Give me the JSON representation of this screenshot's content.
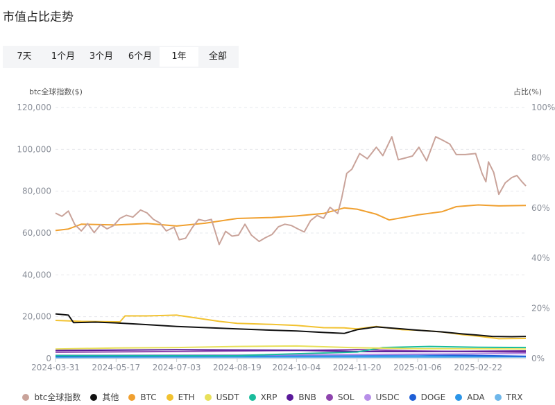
{
  "page": {
    "title": "市值占比走势"
  },
  "tabs": [
    {
      "label": "7天",
      "active": false
    },
    {
      "label": "1个月",
      "active": false
    },
    {
      "label": "3个月",
      "active": false
    },
    {
      "label": "6个月",
      "active": false
    },
    {
      "label": "1年",
      "active": true
    },
    {
      "label": "全部",
      "active": false
    }
  ],
  "chart_data": {
    "type": "line",
    "left_axis_title": "btc全球指数($)",
    "right_axis_title": "占比(%)",
    "y_left": {
      "min": 0,
      "max": 120000,
      "ticks": [
        "0",
        "20,000",
        "40,000",
        "60,000",
        "80,000",
        "100,000",
        "120,000"
      ]
    },
    "y_right": {
      "min": 0,
      "max": 100,
      "ticks": [
        "0%",
        "20%",
        "40%",
        "60%",
        "80%",
        "100%"
      ]
    },
    "x_range": [
      "2024-03-31",
      "2025-03-31"
    ],
    "x_ticks": [
      "2024-03-31",
      "2024-05-17",
      "2024-07-03",
      "2024-08-19",
      "2024-10-04",
      "2024-11-20",
      "2025-01-06",
      "2025-02-22"
    ],
    "grid": "horizontal-dashed",
    "legend_position": "bottom",
    "series": [
      {
        "name": "btc全球指数($)",
        "axis": "left",
        "color": "#c9a39a",
        "points": [
          [
            "2024-03-31",
            69500
          ],
          [
            "2024-04-05",
            68000
          ],
          [
            "2024-04-10",
            70500
          ],
          [
            "2024-04-15",
            64000
          ],
          [
            "2024-04-20",
            61000
          ],
          [
            "2024-04-25",
            64500
          ],
          [
            "2024-04-30",
            60200
          ],
          [
            "2024-05-05",
            64000
          ],
          [
            "2024-05-10",
            62000
          ],
          [
            "2024-05-15",
            63500
          ],
          [
            "2024-05-20",
            67000
          ],
          [
            "2024-05-25",
            68500
          ],
          [
            "2024-05-30",
            67600
          ],
          [
            "2024-06-05",
            71000
          ],
          [
            "2024-06-10",
            69600
          ],
          [
            "2024-06-15",
            66500
          ],
          [
            "2024-06-20",
            64800
          ],
          [
            "2024-06-25",
            61000
          ],
          [
            "2024-07-01",
            62800
          ],
          [
            "2024-07-05",
            56800
          ],
          [
            "2024-07-10",
            57500
          ],
          [
            "2024-07-15",
            62500
          ],
          [
            "2024-07-20",
            66500
          ],
          [
            "2024-07-25",
            65800
          ],
          [
            "2024-07-30",
            66500
          ],
          [
            "2024-08-05",
            54500
          ],
          [
            "2024-08-10",
            60800
          ],
          [
            "2024-08-15",
            58500
          ],
          [
            "2024-08-20",
            59000
          ],
          [
            "2024-08-25",
            64200
          ],
          [
            "2024-08-30",
            59000
          ],
          [
            "2024-09-05",
            56000
          ],
          [
            "2024-09-10",
            57800
          ],
          [
            "2024-09-15",
            59300
          ],
          [
            "2024-09-20",
            63000
          ],
          [
            "2024-09-25",
            64200
          ],
          [
            "2024-09-30",
            63600
          ],
          [
            "2024-10-05",
            62000
          ],
          [
            "2024-10-10",
            60500
          ],
          [
            "2024-10-15",
            66000
          ],
          [
            "2024-10-20",
            68400
          ],
          [
            "2024-10-25",
            67000
          ],
          [
            "2024-10-30",
            72300
          ],
          [
            "2024-11-05",
            69300
          ],
          [
            "2024-11-08",
            76500
          ],
          [
            "2024-11-12",
            88500
          ],
          [
            "2024-11-16",
            90500
          ],
          [
            "2024-11-22",
            98000
          ],
          [
            "2024-11-28",
            95500
          ],
          [
            "2024-12-05",
            101000
          ],
          [
            "2024-12-10",
            97000
          ],
          [
            "2024-12-17",
            106000
          ],
          [
            "2024-12-22",
            95000
          ],
          [
            "2024-12-27",
            95800
          ],
          [
            "2025-01-02",
            96800
          ],
          [
            "2025-01-07",
            101000
          ],
          [
            "2025-01-13",
            94500
          ],
          [
            "2025-01-20",
            106000
          ],
          [
            "2025-01-25",
            104500
          ],
          [
            "2025-01-31",
            102500
          ],
          [
            "2025-02-05",
            97500
          ],
          [
            "2025-02-12",
            97500
          ],
          [
            "2025-02-20",
            98000
          ],
          [
            "2025-02-25",
            88500
          ],
          [
            "2025-02-28",
            84500
          ],
          [
            "2025-03-02",
            94000
          ],
          [
            "2025-03-06",
            89000
          ],
          [
            "2025-03-10",
            78500
          ],
          [
            "2025-03-15",
            84000
          ],
          [
            "2025-03-20",
            86500
          ],
          [
            "2025-03-24",
            87500
          ],
          [
            "2025-03-28",
            84500
          ],
          [
            "2025-03-31",
            82500
          ]
        ]
      },
      {
        "name": "其他",
        "axis": "right",
        "color": "#111111",
        "points": [
          [
            "2024-03-31",
            17.8
          ],
          [
            "2024-04-10",
            17.3
          ],
          [
            "2024-04-14",
            14.3
          ],
          [
            "2024-05-01",
            14.5
          ],
          [
            "2024-05-17",
            14.2
          ],
          [
            "2024-06-10",
            13.5
          ],
          [
            "2024-07-03",
            12.8
          ],
          [
            "2024-07-30",
            12.2
          ],
          [
            "2024-08-19",
            11.8
          ],
          [
            "2024-09-15",
            11.3
          ],
          [
            "2024-10-04",
            11.0
          ],
          [
            "2024-10-25",
            10.4
          ],
          [
            "2024-11-10",
            10.0
          ],
          [
            "2024-11-20",
            11.5
          ],
          [
            "2024-12-05",
            12.6
          ],
          [
            "2024-12-25",
            11.8
          ],
          [
            "2025-01-06",
            11.3
          ],
          [
            "2025-01-25",
            10.6
          ],
          [
            "2025-02-10",
            9.8
          ],
          [
            "2025-02-22",
            9.3
          ],
          [
            "2025-03-05",
            8.8
          ],
          [
            "2025-03-20",
            8.7
          ],
          [
            "2025-03-31",
            8.8
          ]
        ]
      },
      {
        "name": "BTC",
        "axis": "right",
        "color": "#f0a030",
        "points": [
          [
            "2024-03-31",
            51.0
          ],
          [
            "2024-04-10",
            51.6
          ],
          [
            "2024-04-20",
            53.5
          ],
          [
            "2024-05-17",
            53.2
          ],
          [
            "2024-06-10",
            53.8
          ],
          [
            "2024-07-03",
            52.8
          ],
          [
            "2024-07-25",
            53.9
          ],
          [
            "2024-08-19",
            55.8
          ],
          [
            "2024-09-15",
            56.2
          ],
          [
            "2024-10-04",
            56.8
          ],
          [
            "2024-10-25",
            57.8
          ],
          [
            "2024-11-10",
            60.0
          ],
          [
            "2024-11-20",
            59.5
          ],
          [
            "2024-12-05",
            57.5
          ],
          [
            "2024-12-15",
            55.2
          ],
          [
            "2025-01-06",
            57.2
          ],
          [
            "2025-01-25",
            58.5
          ],
          [
            "2025-02-05",
            60.5
          ],
          [
            "2025-02-22",
            61.2
          ],
          [
            "2025-03-10",
            60.8
          ],
          [
            "2025-03-31",
            61.0
          ]
        ]
      },
      {
        "name": "ETH",
        "axis": "right",
        "color": "#f2c230",
        "points": [
          [
            "2024-03-31",
            15.2
          ],
          [
            "2024-04-20",
            14.8
          ],
          [
            "2024-05-20",
            14.6
          ],
          [
            "2024-05-24",
            17.0
          ],
          [
            "2024-06-10",
            17.0
          ],
          [
            "2024-07-03",
            17.3
          ],
          [
            "2024-08-05",
            14.8
          ],
          [
            "2024-08-19",
            14.0
          ],
          [
            "2024-09-15",
            13.6
          ],
          [
            "2024-10-04",
            13.2
          ],
          [
            "2024-10-25",
            12.3
          ],
          [
            "2024-11-10",
            12.2
          ],
          [
            "2024-11-20",
            11.8
          ],
          [
            "2024-12-05",
            12.8
          ],
          [
            "2024-12-25",
            11.5
          ],
          [
            "2025-01-06",
            11.3
          ],
          [
            "2025-01-25",
            10.6
          ],
          [
            "2025-02-10",
            9.5
          ],
          [
            "2025-02-22",
            8.9
          ],
          [
            "2025-03-10",
            7.9
          ],
          [
            "2025-03-31",
            8.0
          ]
        ]
      },
      {
        "name": "USDT",
        "axis": "right",
        "color": "#e8e05a",
        "points": [
          [
            "2024-03-31",
            3.8
          ],
          [
            "2024-05-17",
            4.2
          ],
          [
            "2024-07-03",
            4.4
          ],
          [
            "2024-08-19",
            4.8
          ],
          [
            "2024-10-04",
            5.0
          ],
          [
            "2024-11-20",
            4.3
          ],
          [
            "2025-01-06",
            3.9
          ],
          [
            "2025-02-22",
            3.9
          ],
          [
            "2025-03-31",
            3.8
          ]
        ]
      },
      {
        "name": "XRP",
        "axis": "right",
        "color": "#1abc9c",
        "points": [
          [
            "2024-03-31",
            1.2
          ],
          [
            "2024-08-19",
            1.2
          ],
          [
            "2024-11-20",
            2.6
          ],
          [
            "2024-12-10",
            4.4
          ],
          [
            "2025-01-15",
            4.8
          ],
          [
            "2025-02-22",
            4.5
          ],
          [
            "2025-03-31",
            4.4
          ]
        ]
      },
      {
        "name": "BNB",
        "axis": "right",
        "color": "#5a1a9a",
        "points": [
          [
            "2024-03-31",
            3.2
          ],
          [
            "2024-07-03",
            3.5
          ],
          [
            "2024-10-04",
            3.3
          ],
          [
            "2024-11-20",
            2.8
          ],
          [
            "2025-01-06",
            2.8
          ],
          [
            "2025-03-31",
            3.0
          ]
        ]
      },
      {
        "name": "SOL",
        "axis": "right",
        "color": "#8e44ad",
        "points": [
          [
            "2024-03-31",
            2.5
          ],
          [
            "2024-07-03",
            2.8
          ],
          [
            "2024-10-04",
            3.2
          ],
          [
            "2024-11-20",
            3.6
          ],
          [
            "2025-01-06",
            3.0
          ],
          [
            "2025-03-31",
            2.5
          ]
        ]
      },
      {
        "name": "USDC",
        "axis": "right",
        "color": "#b78fe8",
        "points": [
          [
            "2024-03-31",
            1.3
          ],
          [
            "2024-10-04",
            1.5
          ],
          [
            "2025-03-31",
            2.0
          ]
        ]
      },
      {
        "name": "DOGE",
        "axis": "right",
        "color": "#1f5fd6",
        "points": [
          [
            "2024-03-31",
            0.9
          ],
          [
            "2024-11-20",
            1.5
          ],
          [
            "2025-01-06",
            1.6
          ],
          [
            "2025-03-31",
            0.9
          ]
        ]
      },
      {
        "name": "ADA",
        "axis": "right",
        "color": "#2b95e8",
        "points": [
          [
            "2024-03-31",
            0.7
          ],
          [
            "2024-11-20",
            0.9
          ],
          [
            "2025-01-06",
            1.0
          ],
          [
            "2025-03-31",
            0.8
          ]
        ]
      },
      {
        "name": "TRX",
        "axis": "right",
        "color": "#6fb7ea",
        "points": [
          [
            "2024-03-31",
            0.4
          ],
          [
            "2024-10-04",
            0.5
          ],
          [
            "2025-03-31",
            0.6
          ]
        ]
      }
    ]
  }
}
